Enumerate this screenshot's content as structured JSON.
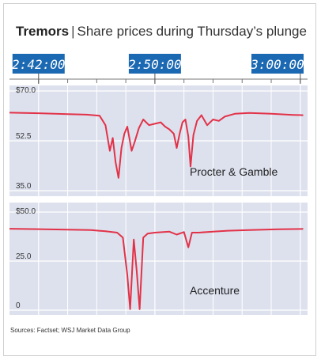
{
  "header": {
    "title_bold": "Tremors",
    "separator": "|",
    "title_rest": "Share prices during Thursday’s plunge"
  },
  "source": "Sources: Factset; WSJ Market Data Group",
  "colors": {
    "panel_bg": "#dde1ee",
    "line": "#e23248",
    "time_box": "#1c69b3",
    "time_text": "#ffffff"
  },
  "time_labels": [
    "2:42:00",
    "2:50:00",
    "3:00:00"
  ],
  "chart_data": [
    {
      "type": "line",
      "label": "Procter & Gamble",
      "x_unit": "minutes after 2:40 p.m.",
      "xlim": [
        0,
        20.5
      ],
      "ylim": [
        35,
        70
      ],
      "yticks": [
        35,
        52.5,
        70
      ],
      "ytick_labels": [
        "35.0",
        "52.5",
        "$70.0"
      ],
      "grid": true,
      "points": [
        [
          0,
          62.4
        ],
        [
          2.0,
          62.2
        ],
        [
          4.0,
          61.9
        ],
        [
          5.3,
          61.7
        ],
        [
          6.2,
          61.3
        ],
        [
          6.6,
          58.0
        ],
        [
          6.9,
          49.0
        ],
        [
          7.1,
          53.5
        ],
        [
          7.3,
          45.0
        ],
        [
          7.5,
          39.5
        ],
        [
          7.7,
          50.0
        ],
        [
          7.9,
          55.0
        ],
        [
          8.1,
          57.5
        ],
        [
          8.4,
          49.0
        ],
        [
          8.6,
          52.0
        ],
        [
          8.9,
          57.0
        ],
        [
          9.2,
          60.0
        ],
        [
          9.6,
          58.0
        ],
        [
          10.0,
          58.5
        ],
        [
          10.4,
          59.0
        ],
        [
          10.7,
          57.5
        ],
        [
          11.0,
          56.5
        ],
        [
          11.3,
          55.0
        ],
        [
          11.5,
          50.0
        ],
        [
          11.7,
          55.0
        ],
        [
          11.9,
          59.0
        ],
        [
          12.1,
          60.0
        ],
        [
          12.3,
          54.0
        ],
        [
          12.45,
          43.5
        ],
        [
          12.65,
          54.5
        ],
        [
          12.9,
          59.5
        ],
        [
          13.2,
          61.5
        ],
        [
          13.6,
          58.0
        ],
        [
          14.0,
          60.0
        ],
        [
          14.4,
          59.5
        ],
        [
          14.8,
          61.0
        ],
        [
          15.5,
          62.0
        ],
        [
          16.5,
          62.3
        ],
        [
          18.0,
          62.0
        ],
        [
          19.5,
          61.6
        ],
        [
          20.2,
          61.5
        ]
      ]
    },
    {
      "type": "line",
      "label": "Accenture",
      "x_unit": "minutes after 2:40 p.m.",
      "xlim": [
        0,
        20.5
      ],
      "ylim": [
        0,
        50
      ],
      "yticks": [
        0,
        25,
        50
      ],
      "ytick_labels": [
        "0",
        "25.0",
        "$50.0"
      ],
      "grid": true,
      "points": [
        [
          0,
          41.5
        ],
        [
          2.0,
          41.3
        ],
        [
          4.0,
          41.0
        ],
        [
          5.6,
          40.8
        ],
        [
          6.6,
          40.2
        ],
        [
          7.4,
          39.5
        ],
        [
          7.8,
          37.0
        ],
        [
          8.1,
          18.0
        ],
        [
          8.3,
          0.5
        ],
        [
          8.55,
          36.0
        ],
        [
          8.75,
          20.0
        ],
        [
          8.95,
          0.5
        ],
        [
          9.2,
          37.0
        ],
        [
          9.5,
          39.0
        ],
        [
          10.0,
          39.5
        ],
        [
          11.0,
          40.0
        ],
        [
          11.5,
          38.5
        ],
        [
          12.0,
          39.8
        ],
        [
          12.3,
          32.0
        ],
        [
          12.55,
          39.5
        ],
        [
          13.0,
          39.5
        ],
        [
          14.0,
          40.0
        ],
        [
          15.0,
          40.5
        ],
        [
          16.5,
          40.8
        ],
        [
          18.5,
          41.2
        ],
        [
          20.2,
          41.4
        ]
      ]
    }
  ]
}
